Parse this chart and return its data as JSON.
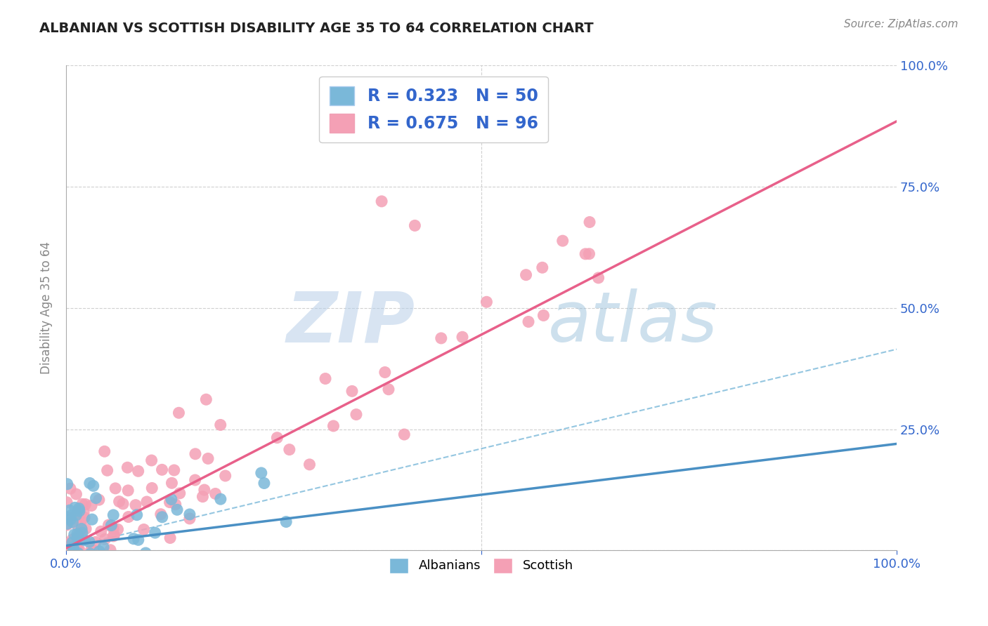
{
  "title": "ALBANIAN VS SCOTTISH DISABILITY AGE 35 TO 64 CORRELATION CHART",
  "source_text": "Source: ZipAtlas.com",
  "ylabel": "Disability Age 35 to 64",
  "albanians_color": "#7ab8d9",
  "scottish_color": "#f4a0b5",
  "albanian_line_color": "#4a90c4",
  "scottish_line_color": "#e8608a",
  "albanian_dash_color": "#7ab8d9",
  "legend_text_color": "#3366cc",
  "R_albanian": 0.323,
  "N_albanian": 50,
  "R_scottish": 0.675,
  "N_scottish": 96,
  "watermark_zip": "ZIP",
  "watermark_atlas": "atlas",
  "background_color": "#ffffff",
  "grid_color": "#d0d0d0",
  "axis_label_color": "#3366cc",
  "title_color": "#222222",
  "albanian_line_slope": 0.21,
  "albanian_line_intercept": 0.01,
  "scottish_line_slope": 0.88,
  "scottish_line_intercept": 0.005
}
